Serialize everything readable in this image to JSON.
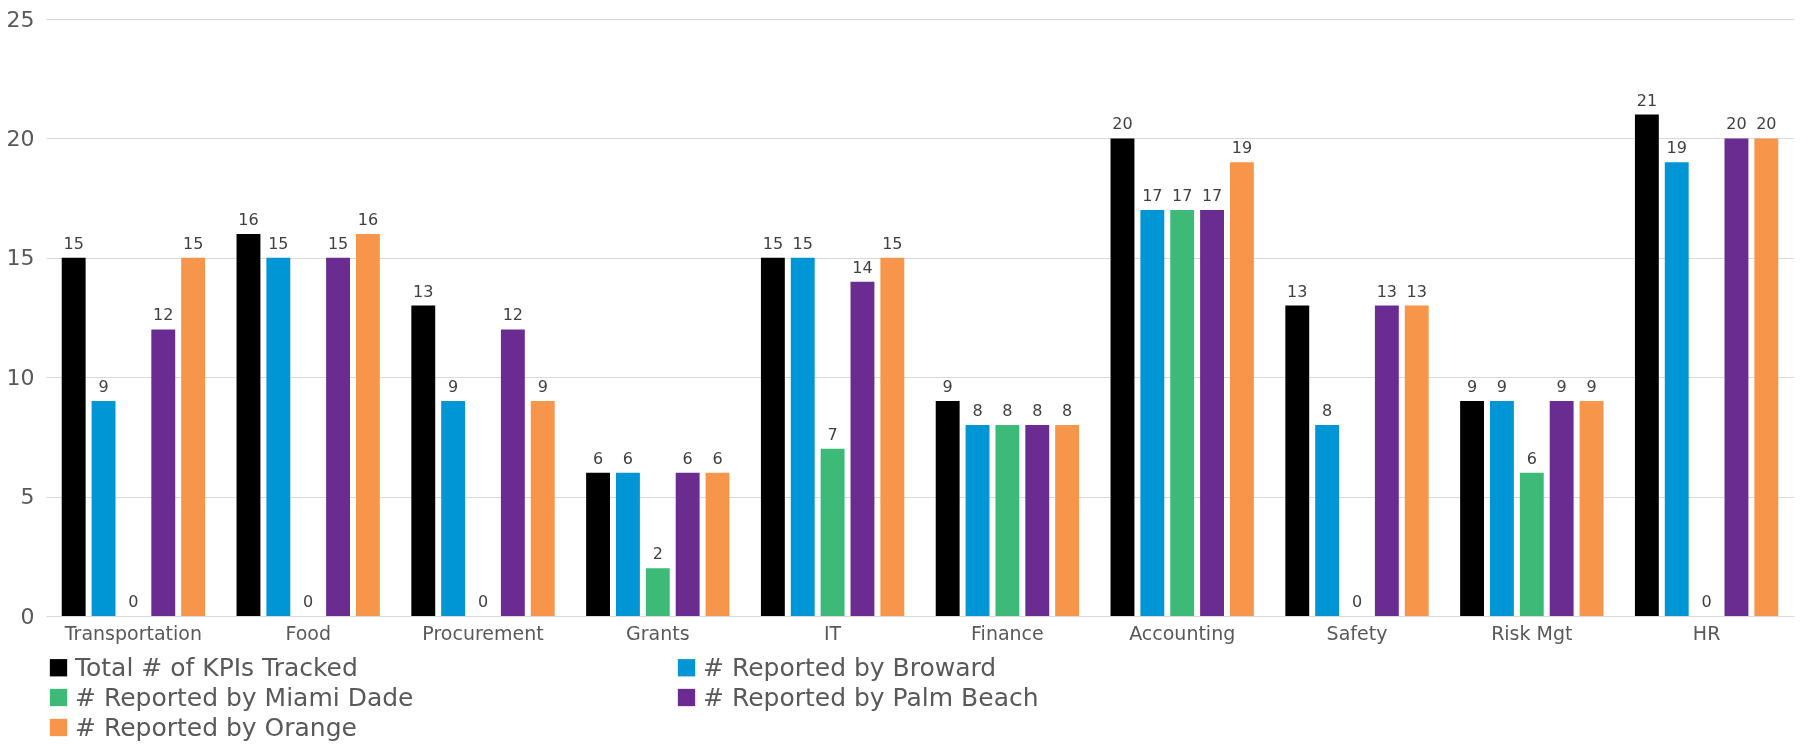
{
  "chart_data": {
    "type": "bar",
    "categories": [
      "Transportation",
      "Food",
      "Procurement",
      "Grants",
      "IT",
      "Finance",
      "Accounting",
      "Safety",
      "Risk Mgt",
      "HR"
    ],
    "series": [
      {
        "name": "Total # of KPIs Tracked",
        "color": "#000000",
        "values": [
          15,
          16,
          13,
          6,
          15,
          9,
          20,
          13,
          9,
          21
        ]
      },
      {
        "name": "# Reported by Broward",
        "color": "#0096d6",
        "values": [
          9,
          15,
          9,
          6,
          15,
          8,
          17,
          8,
          9,
          19
        ]
      },
      {
        "name": "# Reported by Miami Dade",
        "color": "#3dba78",
        "values": [
          0,
          0,
          0,
          2,
          7,
          8,
          17,
          0,
          6,
          0
        ]
      },
      {
        "name": "# Reported by Palm Beach",
        "color": "#6a2c91",
        "values": [
          12,
          15,
          12,
          6,
          14,
          8,
          17,
          13,
          9,
          20
        ]
      },
      {
        "name": "# Reported by Orange",
        "color": "#f7964a",
        "values": [
          15,
          16,
          9,
          6,
          15,
          8,
          19,
          13,
          9,
          20
        ]
      }
    ],
    "ylim": [
      0,
      25
    ],
    "yticks": [
      0,
      5,
      10,
      15,
      20,
      25
    ],
    "grid": "y",
    "legend": "bottom",
    "data_labels": true
  }
}
